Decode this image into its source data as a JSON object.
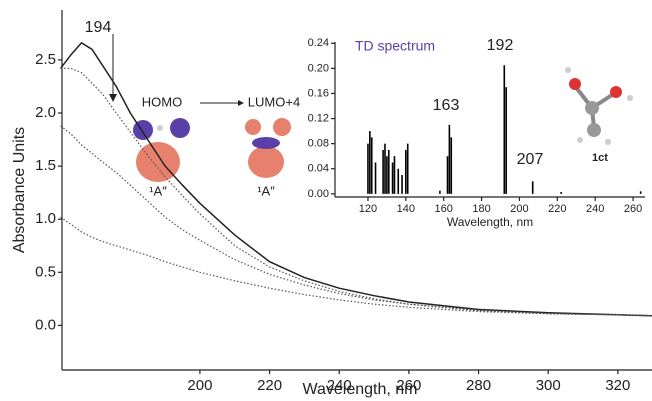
{
  "chart_data": [
    {
      "type": "line",
      "x_label": "Wavelength, nm",
      "y_label": "Absorbance Units",
      "x": [
        160,
        163,
        166,
        169,
        172,
        176,
        180,
        185,
        190,
        195,
        200,
        210,
        220,
        230,
        240,
        250,
        260,
        280,
        300,
        320,
        330
      ],
      "series": [
        {
          "color": "#222222",
          "style": "solid",
          "values": [
            2.42,
            2.55,
            2.66,
            2.6,
            2.45,
            2.25,
            2.0,
            1.75,
            1.5,
            1.32,
            1.15,
            0.85,
            0.6,
            0.45,
            0.35,
            0.28,
            0.22,
            0.15,
            0.12,
            0.1,
            0.09
          ]
        },
        {
          "color": "#555555",
          "style": "dotted",
          "values": [
            2.42,
            2.42,
            2.38,
            2.28,
            2.18,
            2.0,
            1.82,
            1.6,
            1.4,
            1.22,
            1.05,
            0.75,
            0.55,
            0.42,
            0.32,
            0.25,
            0.2,
            0.14,
            0.11,
            0.1,
            0.09
          ]
        },
        {
          "color": "#555555",
          "style": "dotted",
          "values": [
            1.88,
            1.8,
            1.7,
            1.62,
            1.54,
            1.44,
            1.32,
            1.17,
            1.02,
            0.9,
            0.8,
            0.62,
            0.48,
            0.38,
            0.3,
            0.24,
            0.2,
            0.14,
            0.11,
            0.1,
            0.09
          ]
        },
        {
          "color": "#555555",
          "style": "dotted",
          "values": [
            1.02,
            0.95,
            0.88,
            0.83,
            0.79,
            0.75,
            0.71,
            0.66,
            0.6,
            0.55,
            0.5,
            0.42,
            0.35,
            0.29,
            0.24,
            0.2,
            0.17,
            0.13,
            0.11,
            0.1,
            0.09
          ]
        }
      ],
      "xlim": [
        160.4,
        329.8
      ],
      "ylim": [
        -0.42,
        2.97
      ],
      "xticks": [
        200,
        220,
        240,
        260,
        280,
        300,
        320
      ],
      "yticks": [
        {
          "value": 0,
          "label": "0.0"
        },
        0.5,
        {
          "value": 1,
          "label": "1.0"
        },
        1.5,
        {
          "value": 2,
          "label": "2.0"
        },
        2.5
      ],
      "annotations": [
        "194",
        "HOMO",
        "LUMO+4",
        "¹A″",
        "¹A″"
      ]
    },
    {
      "type": "stick",
      "title": "TD spectrum",
      "x_label": "Wavelength, nm",
      "color": "#000000",
      "x": [
        120,
        121,
        122,
        124,
        128,
        129,
        130,
        131,
        133,
        134,
        136,
        138,
        140,
        141,
        158,
        162,
        163,
        164,
        192,
        193,
        207,
        222,
        264
      ],
      "values": [
        0.08,
        0.1,
        0.09,
        0.05,
        0.07,
        0.08,
        0.06,
        0.07,
        0.05,
        0.06,
        0.04,
        0.03,
        0.07,
        0.08,
        0.005,
        0.06,
        0.11,
        0.09,
        0.205,
        0.17,
        0.02,
        0.003,
        0.004
      ],
      "xlim": [
        102.6,
        266.3
      ],
      "ylim": [
        -0.005,
        0.242
      ],
      "xticks": [
        120,
        140,
        160,
        180,
        200,
        220,
        240,
        260
      ],
      "yticks": [
        {
          "value": 0,
          "label": "0.00"
        },
        0.04,
        0.08,
        0.12,
        0.16,
        {
          "value": 0.2,
          "label": "0.20"
        },
        0.24
      ],
      "annotations": [
        "163",
        "192",
        "207",
        "1ct"
      ]
    }
  ]
}
